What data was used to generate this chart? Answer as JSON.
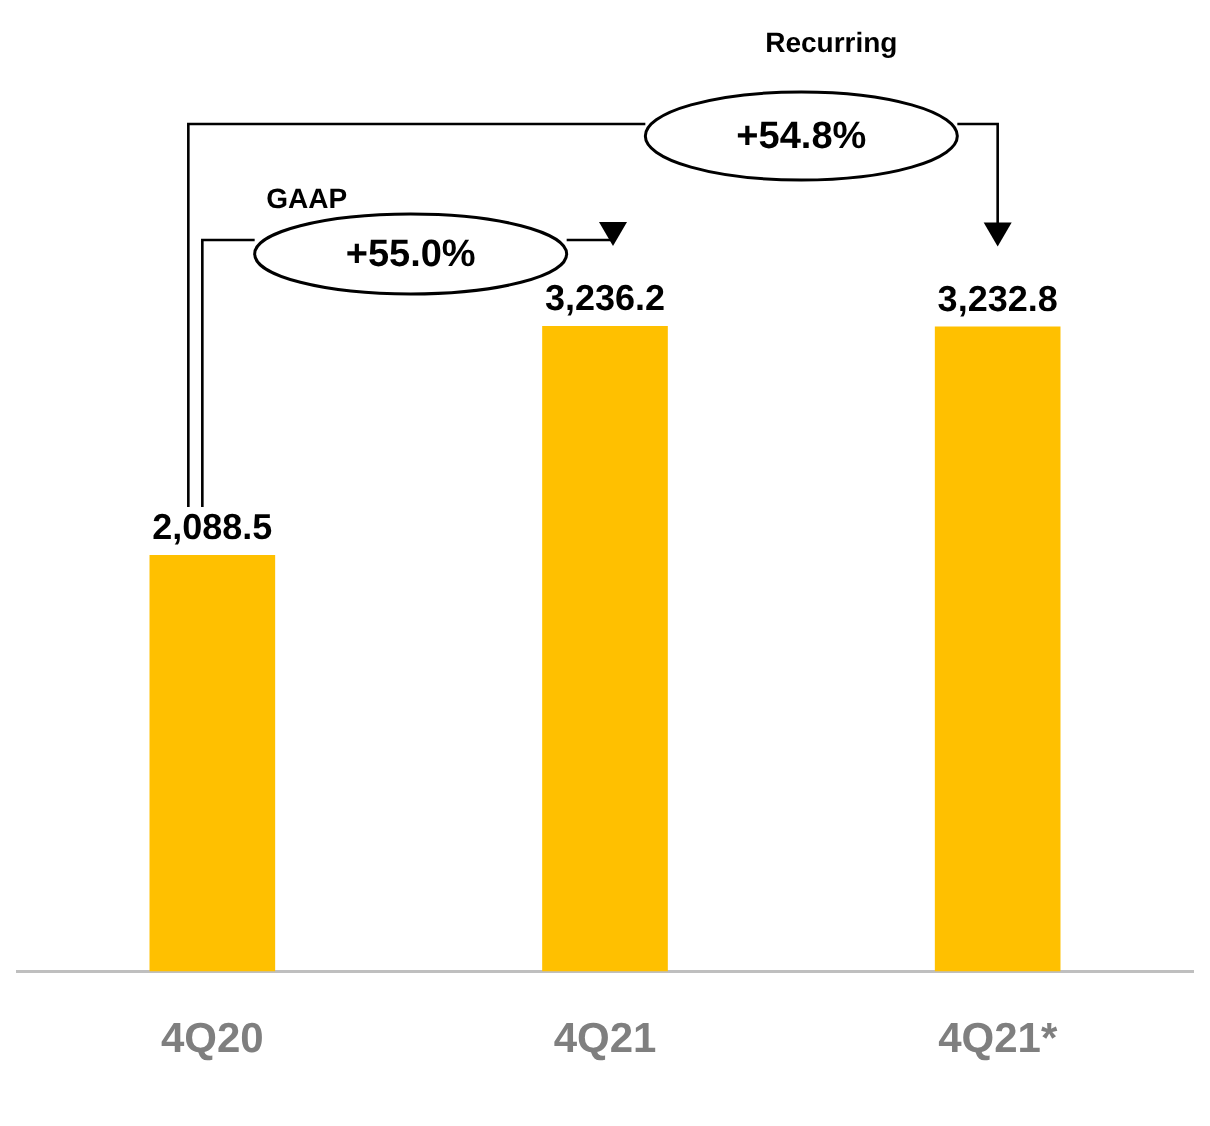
{
  "chart_data": {
    "type": "bar",
    "categories": [
      "4Q20",
      "4Q21",
      "4Q21*"
    ],
    "values": [
      2088.5,
      3236.2,
      3232.8
    ],
    "color": "#ffc000",
    "value_labels": [
      "2,088.5",
      "3,236.2",
      "3,232.8"
    ],
    "grid": false,
    "legend": false,
    "annotations": [
      "GAAP",
      "+55.0%",
      "Recurring",
      "+54.8%"
    ]
  }
}
